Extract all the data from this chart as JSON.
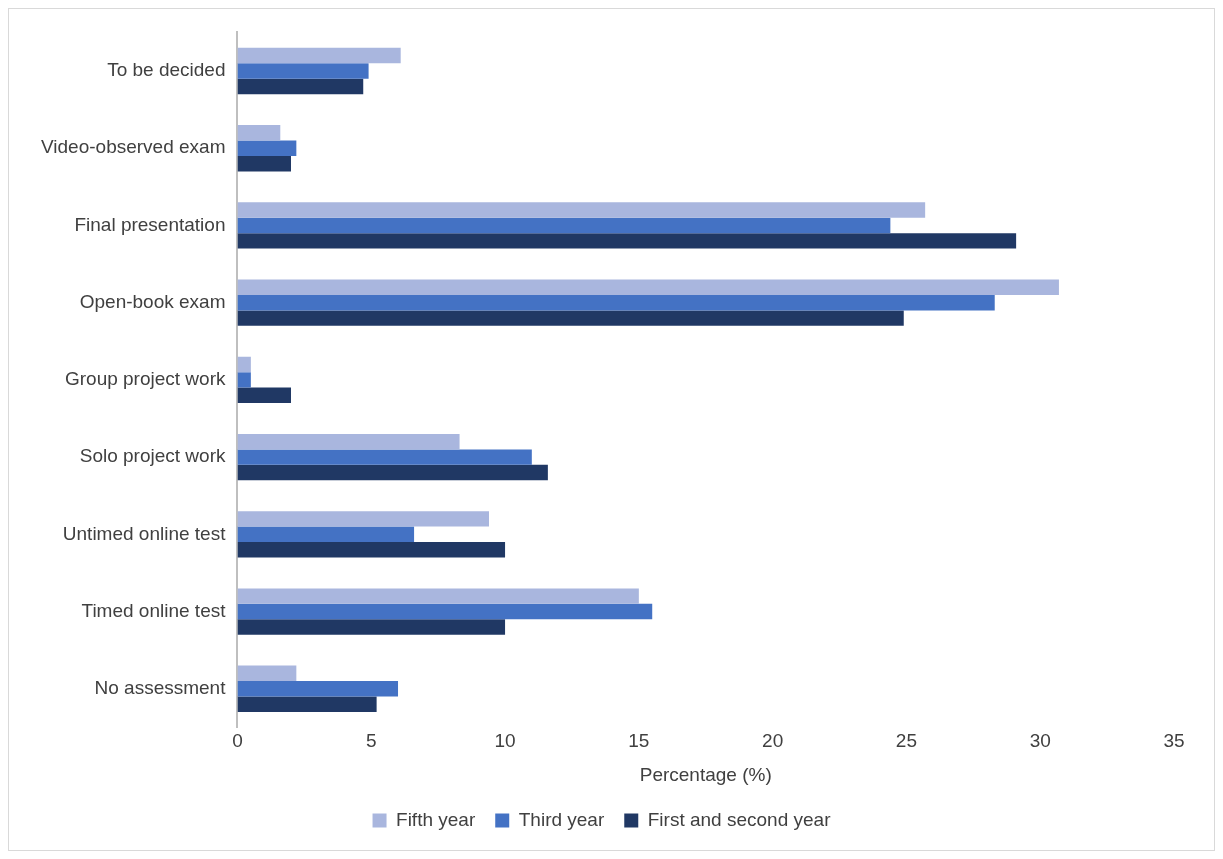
{
  "chart_data": {
    "type": "bar",
    "orientation": "horizontal",
    "xlabel": "Percentage (%)",
    "categories": [
      "To be decided",
      "Video-observed exam",
      "Final presentation",
      "Open-book exam",
      "Group project work",
      "Solo project work",
      "Untimed online test",
      "Timed online test",
      "No assessment"
    ],
    "series": [
      {
        "name": "Fifth year",
        "color": "#a9b6de",
        "values": [
          6.1,
          1.6,
          25.7,
          30.7,
          0.5,
          8.3,
          9.4,
          15.0,
          2.2
        ]
      },
      {
        "name": "Third year",
        "color": "#4472c4",
        "values": [
          4.9,
          2.2,
          24.4,
          28.3,
          0.5,
          11.0,
          6.6,
          15.5,
          6.0
        ]
      },
      {
        "name": "First and second year",
        "color": "#203864",
        "values": [
          4.7,
          2.0,
          29.1,
          24.9,
          2.0,
          11.6,
          10.0,
          10.0,
          5.2
        ]
      }
    ],
    "xlim": [
      0,
      35
    ],
    "xticks": [
      0,
      5,
      10,
      15,
      20,
      25,
      30,
      35
    ],
    "grid": false,
    "legend": "bottom"
  }
}
